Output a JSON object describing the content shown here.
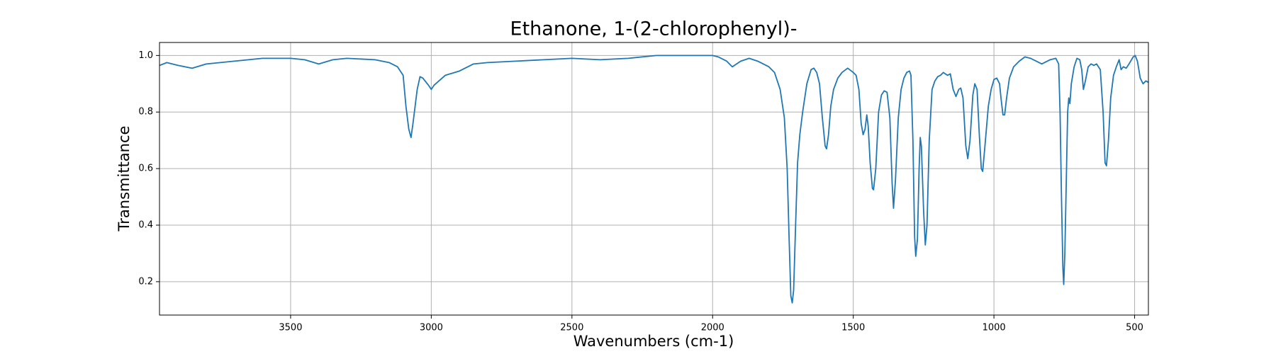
{
  "chart_data": {
    "type": "line",
    "title": "Ethanone, 1-(2-chlorophenyl)-",
    "x_label": "Wavenumbers (cm-1)",
    "y_label": "Transmittance",
    "color": "#1f77b4",
    "grid": true,
    "xlim": [
      3966,
      451
    ],
    "ylim": [
      0.082,
      1.046
    ],
    "xticks": [
      3500,
      3000,
      2500,
      2000,
      1500,
      1000,
      500
    ],
    "yticks": [
      0.2,
      0.4,
      0.6,
      0.8,
      {
        "value": 1,
        "label": "1.0"
      }
    ],
    "x": [
      3965,
      3940,
      3900,
      3850,
      3800,
      3750,
      3700,
      3650,
      3600,
      3550,
      3500,
      3450,
      3400,
      3350,
      3300,
      3200,
      3150,
      3120,
      3100,
      3090,
      3080,
      3072,
      3065,
      3050,
      3040,
      3030,
      3010,
      3000,
      2990,
      2950,
      2900,
      2850,
      2800,
      2700,
      2600,
      2500,
      2400,
      2300,
      2200,
      2100,
      2000,
      1980,
      1950,
      1930,
      1900,
      1870,
      1840,
      1800,
      1780,
      1760,
      1745,
      1735,
      1728,
      1722,
      1717,
      1712,
      1705,
      1698,
      1690,
      1680,
      1665,
      1650,
      1640,
      1630,
      1620,
      1610,
      1600,
      1595,
      1588,
      1580,
      1570,
      1555,
      1540,
      1520,
      1500,
      1490,
      1480,
      1472,
      1465,
      1458,
      1452,
      1447,
      1440,
      1432,
      1428,
      1420,
      1410,
      1400,
      1390,
      1380,
      1370,
      1362,
      1357,
      1350,
      1340,
      1330,
      1320,
      1310,
      1300,
      1295,
      1288,
      1282,
      1278,
      1272,
      1266,
      1262,
      1258,
      1250,
      1244,
      1238,
      1230,
      1220,
      1210,
      1200,
      1190,
      1180,
      1165,
      1155,
      1145,
      1135,
      1125,
      1118,
      1110,
      1100,
      1093,
      1085,
      1075,
      1068,
      1060,
      1052,
      1045,
      1040,
      1032,
      1020,
      1010,
      1000,
      990,
      980,
      975,
      968,
      962,
      955,
      945,
      930,
      910,
      890,
      870,
      850,
      830,
      800,
      780,
      770,
      765,
      760,
      755,
      752,
      748,
      742,
      738,
      734,
      730,
      725,
      715,
      705,
      695,
      688,
      682,
      675,
      665,
      655,
      645,
      635,
      622,
      612,
      605,
      600,
      593,
      585,
      575,
      565,
      555,
      548,
      540,
      530,
      520,
      505,
      498,
      490,
      480,
      470,
      460,
      451
    ],
    "values": [
      0.965,
      0.975,
      0.965,
      0.955,
      0.97,
      0.975,
      0.98,
      0.985,
      0.99,
      0.99,
      0.99,
      0.985,
      0.97,
      0.985,
      0.99,
      0.985,
      0.975,
      0.96,
      0.93,
      0.82,
      0.74,
      0.71,
      0.76,
      0.88,
      0.925,
      0.92,
      0.895,
      0.88,
      0.895,
      0.93,
      0.945,
      0.97,
      0.975,
      0.98,
      0.985,
      0.99,
      0.985,
      0.99,
      1.0,
      1.0,
      1.0,
      0.995,
      0.98,
      0.96,
      0.98,
      0.99,
      0.98,
      0.96,
      0.94,
      0.88,
      0.78,
      0.6,
      0.35,
      0.15,
      0.125,
      0.17,
      0.4,
      0.62,
      0.72,
      0.8,
      0.9,
      0.95,
      0.955,
      0.94,
      0.9,
      0.78,
      0.68,
      0.67,
      0.72,
      0.82,
      0.88,
      0.92,
      0.94,
      0.955,
      0.94,
      0.93,
      0.88,
      0.76,
      0.72,
      0.74,
      0.79,
      0.75,
      0.62,
      0.53,
      0.525,
      0.6,
      0.8,
      0.86,
      0.875,
      0.87,
      0.78,
      0.55,
      0.46,
      0.56,
      0.78,
      0.88,
      0.92,
      0.94,
      0.945,
      0.93,
      0.7,
      0.36,
      0.29,
      0.35,
      0.6,
      0.71,
      0.68,
      0.45,
      0.33,
      0.4,
      0.7,
      0.88,
      0.91,
      0.925,
      0.93,
      0.94,
      0.93,
      0.935,
      0.88,
      0.855,
      0.88,
      0.885,
      0.85,
      0.68,
      0.635,
      0.7,
      0.86,
      0.9,
      0.88,
      0.72,
      0.6,
      0.59,
      0.68,
      0.82,
      0.88,
      0.915,
      0.92,
      0.9,
      0.85,
      0.79,
      0.79,
      0.85,
      0.92,
      0.96,
      0.98,
      0.995,
      0.99,
      0.98,
      0.97,
      0.985,
      0.99,
      0.97,
      0.8,
      0.5,
      0.25,
      0.19,
      0.3,
      0.6,
      0.8,
      0.85,
      0.83,
      0.9,
      0.96,
      0.99,
      0.985,
      0.95,
      0.88,
      0.91,
      0.96,
      0.97,
      0.965,
      0.97,
      0.95,
      0.8,
      0.62,
      0.61,
      0.7,
      0.85,
      0.93,
      0.96,
      0.985,
      0.95,
      0.96,
      0.955,
      0.97,
      0.995,
      1.0,
      0.98,
      0.92,
      0.9,
      0.91,
      0.905
    ]
  }
}
